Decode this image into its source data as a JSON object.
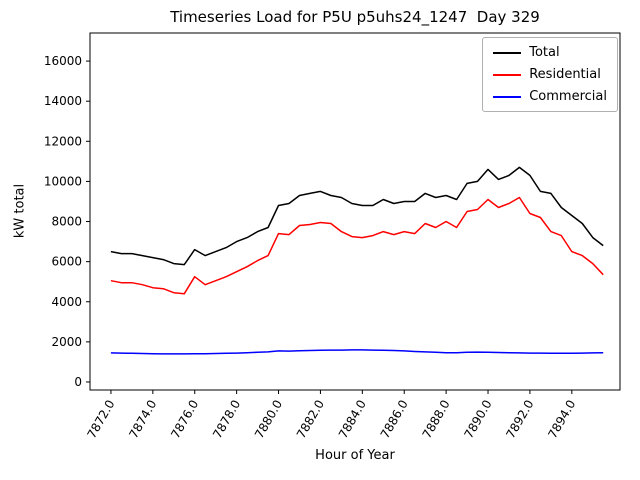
{
  "chart_data": {
    "type": "line",
    "title": "Timeseries Load for P5U p5uhs24_1247  Day 329",
    "xlabel": "Hour of Year",
    "ylabel": "kW total",
    "xlim": [
      7871.0,
      7896.3
    ],
    "ylim": [
      -400,
      17400
    ],
    "grid": false,
    "legend_position": "upper right",
    "xticks": [
      7872,
      7874,
      7876,
      7878,
      7880,
      7882,
      7884,
      7886,
      7888,
      7890,
      7892,
      7894
    ],
    "xtick_labels": [
      "7872.0",
      "7874.0",
      "7876.0",
      "7878.0",
      "7880.0",
      "7882.0",
      "7884.0",
      "7886.0",
      "7888.0",
      "7890.0",
      "7892.0",
      "7894.0"
    ],
    "yticks": [
      0,
      2000,
      4000,
      6000,
      8000,
      10000,
      12000,
      14000,
      16000
    ],
    "x": [
      7872.0,
      7872.5,
      7873.0,
      7873.5,
      7874.0,
      7874.5,
      7875.0,
      7875.5,
      7876.0,
      7876.5,
      7877.0,
      7877.5,
      7878.0,
      7878.5,
      7879.0,
      7879.5,
      7880.0,
      7880.5,
      7881.0,
      7881.5,
      7882.0,
      7882.5,
      7883.0,
      7883.5,
      7884.0,
      7884.5,
      7885.0,
      7885.5,
      7886.0,
      7886.5,
      7887.0,
      7887.5,
      7888.0,
      7888.5,
      7889.0,
      7889.5,
      7890.0,
      7890.5,
      7891.0,
      7891.5,
      7892.0,
      7892.5,
      7893.0,
      7893.5,
      7894.0,
      7894.5,
      7895.0,
      7895.5
    ],
    "series": [
      {
        "name": "Total",
        "color": "#000000",
        "values": [
          6500,
          6400,
          6400,
          6300,
          6200,
          6100,
          5900,
          5850,
          6600,
          6300,
          6500,
          6700,
          7000,
          7200,
          7500,
          7700,
          8800,
          8900,
          9300,
          9400,
          9500,
          9300,
          9200,
          8900,
          8800,
          8800,
          9100,
          8900,
          9000,
          9000,
          9400,
          9200,
          9300,
          9100,
          9900,
          10000,
          10600,
          10100,
          10300,
          10700,
          10300,
          9500,
          9400,
          8700,
          8300,
          7900,
          7200,
          6800
        ]
      },
      {
        "name": "Residential",
        "color": "#ff0000",
        "values": [
          5050,
          4950,
          4950,
          4850,
          4700,
          4650,
          4450,
          4400,
          5250,
          4850,
          5050,
          5250,
          5500,
          5750,
          6050,
          6300,
          7400,
          7350,
          7800,
          7850,
          7950,
          7900,
          7500,
          7250,
          7200,
          7300,
          7500,
          7350,
          7500,
          7400,
          7900,
          7700,
          8000,
          7700,
          8500,
          8600,
          9100,
          8700,
          8900,
          9200,
          8400,
          8200,
          7500,
          7300,
          6500,
          6300,
          5900,
          5350
        ]
      },
      {
        "name": "Commercial",
        "color": "#0000ff",
        "values": [
          1450,
          1440,
          1430,
          1420,
          1410,
          1400,
          1400,
          1400,
          1410,
          1410,
          1420,
          1430,
          1440,
          1460,
          1480,
          1500,
          1550,
          1540,
          1560,
          1570,
          1580,
          1590,
          1590,
          1600,
          1600,
          1590,
          1580,
          1570,
          1550,
          1520,
          1500,
          1480,
          1460,
          1460,
          1480,
          1490,
          1480,
          1470,
          1460,
          1450,
          1440,
          1440,
          1430,
          1430,
          1430,
          1440,
          1450,
          1460
        ]
      }
    ]
  }
}
